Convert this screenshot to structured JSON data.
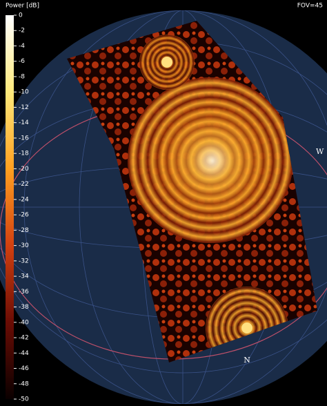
{
  "colorbar": {
    "title": "Power [dB]",
    "range": [
      0,
      -50
    ],
    "ticks": [
      0,
      -2,
      -4,
      -6,
      -8,
      -10,
      -12,
      -14,
      -16,
      -18,
      -20,
      -22,
      -24,
      -26,
      -28,
      -30,
      -32,
      -34,
      -36,
      -38,
      -40,
      -42,
      -44,
      -46,
      -48,
      -50
    ]
  },
  "fov_label": "FOV=45",
  "compass": {
    "west": "W",
    "north": "N"
  }
}
